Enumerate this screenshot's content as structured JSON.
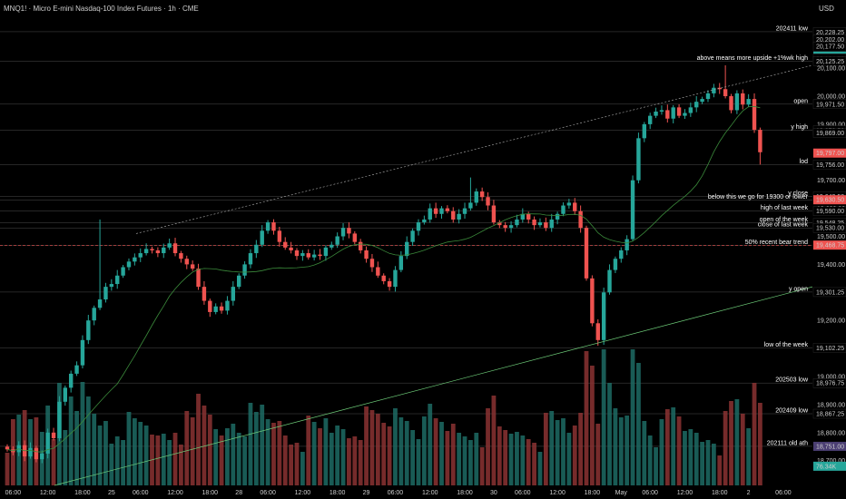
{
  "header": {
    "title": "MNQ1! · Micro E-mini Nasdaq-100 Index Futures · 1h · CME",
    "currency": "USD"
  },
  "colors": {
    "up": "#26a69a",
    "down": "#ef5350",
    "background": "#000000",
    "ma_line": "#3b8a3b",
    "grid_line": "#8a8a8a",
    "price_badge": "#ef5350",
    "green_badge": "#26a69a",
    "purple_badge": "#4b3f73"
  },
  "chart_data": {
    "type": "candlestick",
    "symbol": "MNQ1!",
    "timeframe": "1h",
    "x_tick_labels": [
      "06:00",
      "12:00",
      "18:00",
      "25",
      "06:00",
      "12:00",
      "18:00",
      "28",
      "06:00",
      "12:00",
      "18:00",
      "29",
      "06:00",
      "12:00",
      "18:00",
      "30",
      "06:00",
      "12:00",
      "18:00",
      "May",
      "06:00",
      "12:00",
      "18:00",
      "2",
      "06:00"
    ],
    "x_tick_index": [
      1,
      7,
      13,
      18,
      23,
      29,
      35,
      40,
      45,
      51,
      57,
      62,
      67,
      73,
      79,
      84,
      89,
      95,
      101,
      106,
      111,
      117,
      123,
      128,
      134
    ],
    "y_range": [
      18650,
      20250
    ],
    "y_ticks": [
      20100,
      20000,
      19900,
      19800,
      19700,
      19600,
      19500,
      19400,
      19300,
      19200,
      19100,
      19000,
      18900,
      18800,
      18700
    ],
    "y_tick_labels": [
      "20,100.00",
      "20,000.00",
      "19,900.00",
      "19,800.00",
      "19,700.00",
      "19,600.00",
      "19,500.00",
      "19,400.00",
      "19,300.00",
      "19,200.00",
      "19,100.00",
      "19,000.00",
      "18,900.00",
      "18,800.00",
      "18,700.00"
    ],
    "closes": [
      18740,
      18730,
      18755,
      18715,
      18745,
      18705,
      18725,
      18800,
      18780,
      18910,
      18960,
      19010,
      19040,
      19130,
      19200,
      19245,
      19275,
      19320,
      19330,
      19360,
      19390,
      19410,
      19425,
      19440,
      19455,
      19450,
      19440,
      19460,
      19475,
      19440,
      19420,
      19400,
      19385,
      19320,
      19270,
      19230,
      19250,
      19235,
      19270,
      19320,
      19360,
      19400,
      19440,
      19470,
      19520,
      19550,
      19520,
      19480,
      19460,
      19450,
      19430,
      19440,
      19425,
      19435,
      19430,
      19460,
      19470,
      19500,
      19530,
      19510,
      19480,
      19450,
      19420,
      19390,
      19360,
      19340,
      19320,
      19380,
      19430,
      19480,
      19520,
      19550,
      19560,
      19600,
      19580,
      19600,
      19590,
      19560,
      19580,
      19600,
      19620,
      19660,
      19640,
      19610,
      19550,
      19540,
      19530,
      19540,
      19560,
      19580,
      19560,
      19540,
      19550,
      19530,
      19560,
      19580,
      19610,
      19620,
      19590,
      19530,
      19350,
      19190,
      19130,
      19300,
      19380,
      19420,
      19450,
      19490,
      19700,
      19850,
      19900,
      19930,
      19945,
      19950,
      19920,
      19960,
      19930,
      19940,
      19960,
      19980,
      19990,
      20010,
      20030,
      20025,
      20000,
      19950,
      20010,
      19970,
      19990,
      19880,
      19800
    ],
    "series": [
      {
        "name": "y close",
        "value": 19642.5
      },
      {
        "name": "open",
        "value": 19971.5
      }
    ],
    "annotations": [
      {
        "text": "202411 low",
        "price": 20230
      },
      {
        "text": "above means more upside +1%wk high",
        "price": 20125
      },
      {
        "text": "open",
        "price": 19971.5
      },
      {
        "text": "y high",
        "price": 19878.5
      },
      {
        "text": "y close",
        "price": 19642.5
      },
      {
        "text": "lod",
        "price": 19756
      },
      {
        "text": "below this we go for 19300 or lower",
        "price": 19630
      },
      {
        "text": "high of last week",
        "price": 19590
      },
      {
        "text": "open of the week",
        "price": 19548
      },
      {
        "text": "close of last week",
        "price": 19530
      },
      {
        "text": "50% recent bear trend",
        "price": 19468
      },
      {
        "text": "y open",
        "price": 19301.25
      },
      {
        "text": "low of the week",
        "price": 19102.25
      },
      {
        "text": "202503 low",
        "price": 18976.75
      },
      {
        "text": "202409 low",
        "price": 18867.25
      },
      {
        "text": "202111 old ath",
        "price": 18751
      }
    ],
    "price_labels": [
      {
        "text": "20,228.25",
        "price": 20228.25,
        "style": "plain"
      },
      {
        "text": "20,202.00",
        "price": 20202,
        "style": "plain"
      },
      {
        "text": "20,177.50",
        "price": 20177.5,
        "style": "plain"
      },
      {
        "text": "20,143.00",
        "price": 20143,
        "style": "green"
      },
      {
        "text": "20,134.75",
        "price": 20134.75,
        "style": "plain"
      },
      {
        "text": "20,125.25",
        "price": 20125.25,
        "style": "plain"
      },
      {
        "text": "19,971.50",
        "price": 19971.5,
        "style": "plain"
      },
      {
        "text": "19,878.50",
        "price": 19878.5,
        "style": "plain"
      },
      {
        "text": "19,869.00",
        "price": 19869,
        "style": "plain"
      },
      {
        "text": "19,797.00",
        "price": 19797,
        "style": "red"
      },
      {
        "text": "19,756.00",
        "price": 19756,
        "style": "plain"
      },
      {
        "text": "19,642.50",
        "price": 19642.5,
        "style": "plain"
      },
      {
        "text": "19,630.50",
        "price": 19630.5,
        "style": "red"
      },
      {
        "text": "19,590.00",
        "price": 19590,
        "style": "plain"
      },
      {
        "text": "19,548.25",
        "price": 19548.25,
        "style": "plain"
      },
      {
        "text": "19,530.00",
        "price": 19530,
        "style": "plain"
      },
      {
        "text": "19,468.75",
        "price": 19468.75,
        "style": "red"
      },
      {
        "text": "19,301.25",
        "price": 19301.25,
        "style": "plain"
      },
      {
        "text": "19,102.25",
        "price": 19102.25,
        "style": "plain"
      },
      {
        "text": "18,976.75",
        "price": 18976.75,
        "style": "plain"
      },
      {
        "text": "18,867.25",
        "price": 18867.25,
        "style": "plain"
      },
      {
        "text": "18,751.00",
        "price": 18751,
        "style": "purple"
      },
      {
        "text": "76.34K",
        "price": 18680,
        "style": "green"
      }
    ]
  }
}
